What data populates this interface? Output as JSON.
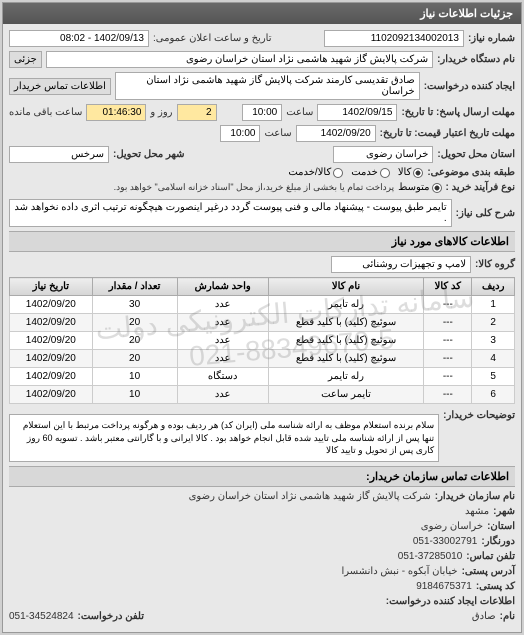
{
  "header": {
    "title": "جزئیات اطلاعات نیاز"
  },
  "top": {
    "need_no_label": "شماره نیاز:",
    "need_no": "1102092134002013",
    "announce_label": "تاریخ و ساعت اعلان عمومی:",
    "announce_value": "1402/09/13 - 08:02",
    "buyer_label": "نام دستگاه خریدار:",
    "buyer": "شرکت پالایش گاز شهید هاشمی نژاد   استان خراسان رضوی",
    "partial_label": "جزئی",
    "creator_label": "ایجاد کننده درخواست:",
    "creator": "صادق تقدیسی کارمند شرکت پالایش گاز شهید هاشمی نژاد   استان خراسان",
    "contact_btn": "اطلاعات تماس خریدار",
    "deadline_send_label": "مهلت ارسال پاسخ: تا تاریخ:",
    "deadline_send_date": "1402/09/15",
    "time_label": "ساعت",
    "deadline_send_time": "10:00",
    "days_remain": "2",
    "days_remain_label": "روز و",
    "time_remain": "01:46:30",
    "time_remain_label": "ساعت باقی مانده",
    "validity_label": "مهلت تاریخ اعتبار قیمت: تا تاریخ:",
    "validity_date": "1402/09/20",
    "validity_time": "10:00",
    "delivery_state_label": "استان محل تحویل:",
    "delivery_state": "خراسان رضوی",
    "delivery_city_label": "شهر محل تحویل:",
    "delivery_city": "سرخس",
    "pack_type_label": "طبقه بندی موضوعی:",
    "pack_goods": "کالا",
    "pack_service": "خدمت",
    "pack_both": "کالا/خدمت",
    "pay_type_label": "نوع فرآیند خرید :",
    "pay_mid": "متوسط",
    "pay_note": "پرداخت تمام یا بخشی از مبلغ خرید،از محل \"اسناد خزانه اسلامی\" خواهد بود."
  },
  "desc": {
    "label": "شرح کلی نیاز:",
    "text": "تایمر طبق پیوست - پیشنهاد مالی و فنی پیوست گردد درغیر اینصورت هیچگونه ترتیب اثری داده نخواهد شد ."
  },
  "goods": {
    "section_title": "اطلاعات کالاهای مورد نیاز",
    "group_label": "گروه کالا:",
    "group_value": "لامپ و تجهیزات روشنائی",
    "columns": [
      "ردیف",
      "کد کالا",
      "نام کالا",
      "واحد شمارش",
      "تعداد / مقدار",
      "تاریخ نیاز"
    ],
    "rows": [
      [
        "1",
        "---",
        "رله تایمر",
        "عدد",
        "30",
        "1402/09/20"
      ],
      [
        "2",
        "---",
        "سوئیچ (کلید) با کلید قطع",
        "عدد",
        "20",
        "1402/09/20"
      ],
      [
        "3",
        "---",
        "سوئیچ (کلید) با کلید قطع",
        "عدد",
        "20",
        "1402/09/20"
      ],
      [
        "4",
        "---",
        "سوئیچ (کلید) با کلید قطع",
        "عدد",
        "20",
        "1402/09/20"
      ],
      [
        "5",
        "---",
        "رله تایمر",
        "دستگاه",
        "10",
        "1402/09/20"
      ],
      [
        "6",
        "---",
        "تایمر ساعت",
        "عدد",
        "10",
        "1402/09/20"
      ]
    ],
    "watermark1": "سامانه تدارکات الکترونیکی دولت",
    "watermark2": "021-88349670-5"
  },
  "buyer_note": {
    "label": "توضیحات خریدار:",
    "text": "سلام برنده استعلام موظف به ارائه شناسه ملی (ایران کد) هر ردیف بوده و هرگونه پرداخت مرتبط با این استعلام تنها پس از ارائه شناسه ملی تایید شده قابل انجام خواهد بود . کالا ایرانی و با گارانتی معتبر باشد . تسویه 60 روز کاری پس از تحویل و تایید کالا"
  },
  "contact": {
    "section_title": "اطلاعات تماس سازمان خریدار:",
    "org_label": "نام سازمان خریدار:",
    "org": "شرکت پالایش گاز شهید هاشمی نژاد استان خراسان رضوی",
    "city_label": "شهر:",
    "city": "مشهد",
    "province_label": "استان:",
    "province": "خراسان رضوی",
    "fax_label": "دورنگار:",
    "fax": "051-33002791",
    "phone_label": "تلفن تماس:",
    "phone": "051-37285010",
    "postal_label": "آدرس پستی:",
    "postal": "خیابان آبکوه - نبش دانشسرا",
    "zip_label": "کد پستی:",
    "zip": "9184675371",
    "creator_section": "اطلاعات ایجاد کننده درخواست:",
    "name_label": "نام:",
    "name": "صادق",
    "req_phone_label": "تلفن درخواست:",
    "req_phone": "051-34524824"
  }
}
